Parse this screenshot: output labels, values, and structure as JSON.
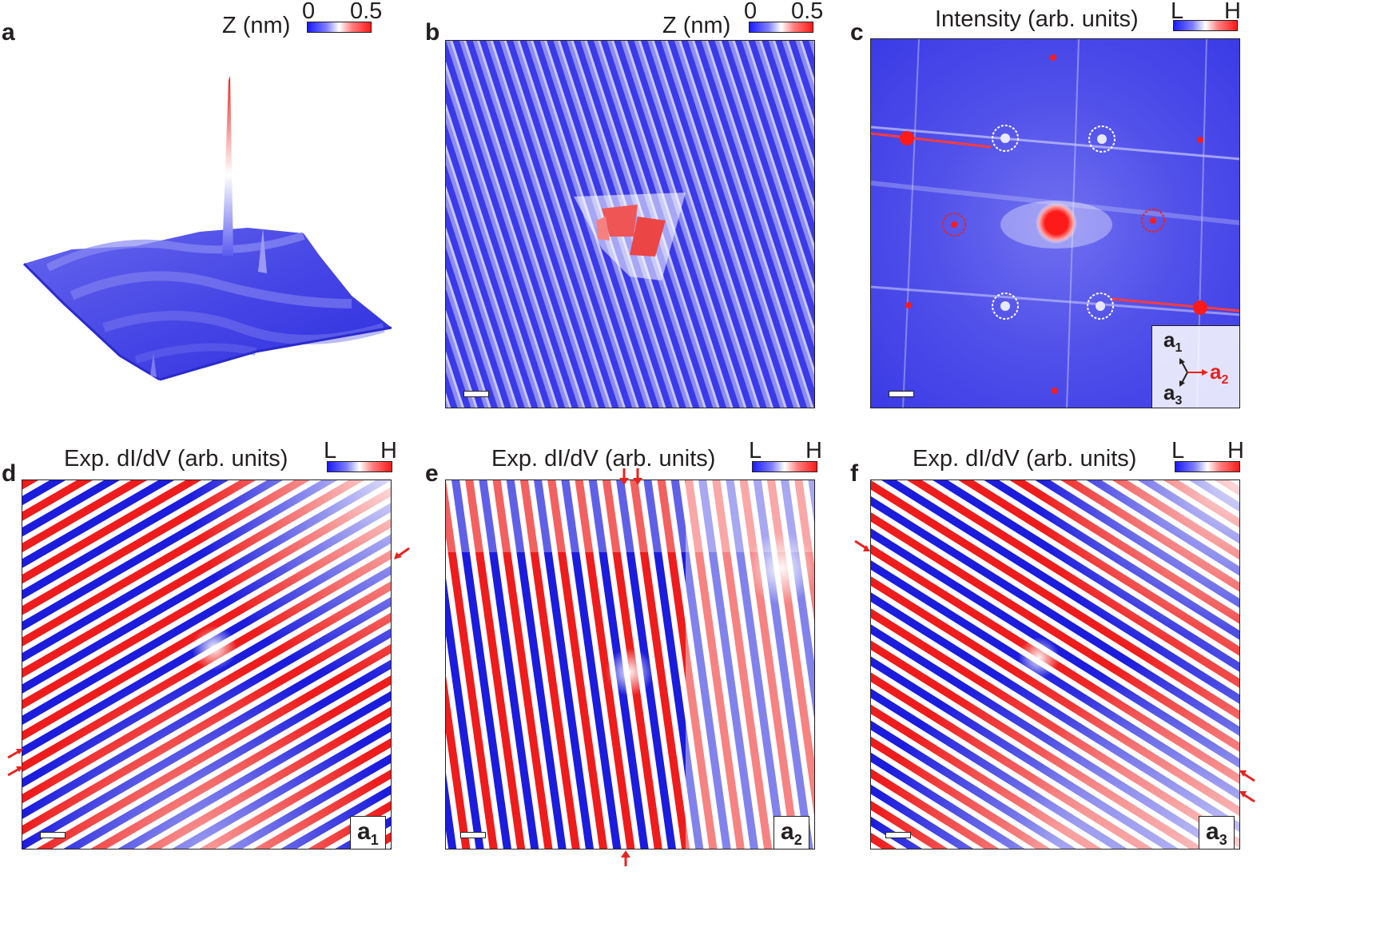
{
  "panels": {
    "a": {
      "label": "a",
      "colorbar_title": "Z (nm)",
      "cbar_min": "0",
      "cbar_max": "0.5"
    },
    "b": {
      "label": "b",
      "colorbar_title": "Z (nm)",
      "cbar_min": "0",
      "cbar_max": "0.5"
    },
    "c": {
      "label": "c",
      "colorbar_title": "Intensity (arb. units)",
      "cbar_min": "L",
      "cbar_max": "H",
      "inset": {
        "v1": "a",
        "v1_sub": "1",
        "v2": "a",
        "v2_sub": "2",
        "v3": "a",
        "v3_sub": "3"
      }
    },
    "d": {
      "label": "d",
      "colorbar_title": "Exp. dI/dV (arb. units)",
      "cbar_min": "L",
      "cbar_max": "H",
      "vector": "a",
      "vector_sub": "1"
    },
    "e": {
      "label": "e",
      "colorbar_title": "Exp. dI/dV (arb. units)",
      "cbar_min": "L",
      "cbar_max": "H",
      "vector": "a",
      "vector_sub": "2"
    },
    "f": {
      "label": "f",
      "colorbar_title": "Exp. dI/dV (arb. units)",
      "cbar_min": "L",
      "cbar_max": "H",
      "vector": "a",
      "vector_sub": "3"
    }
  },
  "colors": {
    "low": "#1a1aff",
    "mid": "#ffffff",
    "high": "#ff1a1a",
    "arrow": "#e8231f"
  }
}
